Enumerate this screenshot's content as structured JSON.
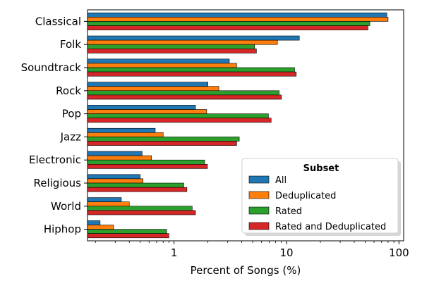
{
  "chart_data": {
    "type": "bar",
    "orientation": "horizontal",
    "xscale": "log",
    "xlim": [
      0.17,
      110
    ],
    "xticks": [
      1,
      10,
      100
    ],
    "xlabel": "Percent of Songs (%)",
    "ylabel": "",
    "title": "",
    "categories": [
      "Classical",
      "Folk",
      "Soundtrack",
      "Rock",
      "Pop",
      "Jazz",
      "Electronic",
      "Religious",
      "World",
      "Hiphop"
    ],
    "series": [
      {
        "name": "All",
        "color": "#1f77b4",
        "values": [
          78,
          13,
          3.1,
          2.0,
          1.55,
          0.68,
          0.52,
          0.5,
          0.34,
          0.22
        ]
      },
      {
        "name": "Deduplicated",
        "color": "#ff7f0e",
        "values": [
          80,
          8.3,
          3.6,
          2.5,
          1.95,
          0.8,
          0.63,
          0.53,
          0.4,
          0.29
        ]
      },
      {
        "name": "Rated",
        "color": "#2ca02c",
        "values": [
          55,
          5.2,
          11.8,
          8.6,
          6.9,
          3.8,
          1.87,
          1.22,
          1.45,
          0.86
        ]
      },
      {
        "name": "Rated and Deduplicated",
        "color": "#d62728",
        "values": [
          53,
          5.4,
          12.2,
          9.0,
          7.3,
          3.6,
          1.98,
          1.3,
          1.55,
          0.9
        ]
      }
    ],
    "legend": {
      "title": "Subset",
      "position": "lower-right"
    },
    "grid": false
  }
}
